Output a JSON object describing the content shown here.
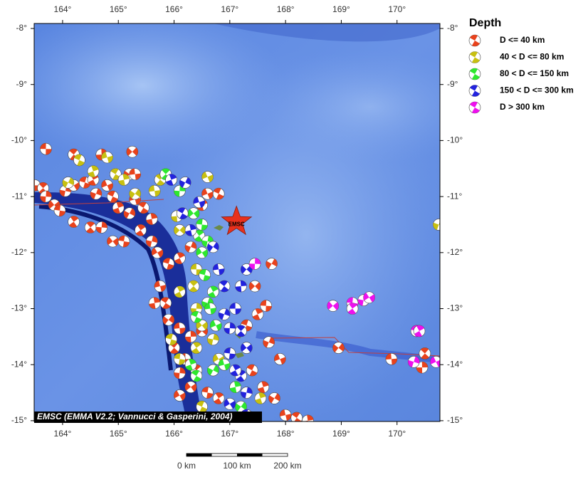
{
  "map": {
    "lon_ticks": [
      {
        "value": 164,
        "label": "164°"
      },
      {
        "value": 165,
        "label": "165°"
      },
      {
        "value": 166,
        "label": "166°"
      },
      {
        "value": 167,
        "label": "167°"
      },
      {
        "value": 168,
        "label": "168°"
      },
      {
        "value": 169,
        "label": "169°"
      },
      {
        "value": 170,
        "label": "170°"
      }
    ],
    "lat_ticks": [
      {
        "value": -8,
        "label": "-8°"
      },
      {
        "value": -9,
        "label": "-9°"
      },
      {
        "value": -10,
        "label": "-10°"
      },
      {
        "value": -11,
        "label": "-11°"
      },
      {
        "value": -12,
        "label": "-12°"
      },
      {
        "value": -13,
        "label": "-13°"
      },
      {
        "value": -14,
        "label": "-14°"
      },
      {
        "value": -15,
        "label": "-15°"
      }
    ],
    "credit": "EMSC (EMMA V2.2; Vannucci & Gasperini, 2004)",
    "epicenter": {
      "label": "EMSC",
      "lon": 167.12,
      "lat": -11.45
    },
    "scale_bar": [
      "0 km",
      "100 km",
      "200 km"
    ],
    "legend": {
      "title": "Depth",
      "items": [
        {
          "label": "D <= 40 km",
          "color": "#e8421c",
          "events": [
            [
              163.5,
              -10.8
            ],
            [
              163.65,
              -10.85
            ],
            [
              163.7,
              -11.0
            ],
            [
              163.85,
              -11.15
            ],
            [
              163.95,
              -11.25
            ],
            [
              164.2,
              -11.45
            ],
            [
              164.05,
              -10.9
            ],
            [
              164.2,
              -10.8
            ],
            [
              164.4,
              -10.75
            ],
            [
              164.55,
              -10.7
            ],
            [
              164.6,
              -10.95
            ],
            [
              164.8,
              -10.8
            ],
            [
              164.9,
              -11.0
            ],
            [
              165.0,
              -11.2
            ],
            [
              165.2,
              -11.3
            ],
            [
              165.3,
              -11.05
            ],
            [
              165.45,
              -11.2
            ],
            [
              165.6,
              -11.4
            ],
            [
              165.2,
              -10.6
            ],
            [
              165.3,
              -10.6
            ],
            [
              164.2,
              -10.25
            ],
            [
              164.7,
              -10.25
            ],
            [
              165.25,
              -10.2
            ],
            [
              163.7,
              -10.15
            ],
            [
              164.5,
              -11.55
            ],
            [
              164.7,
              -11.55
            ],
            [
              164.9,
              -11.8
            ],
            [
              165.1,
              -11.8
            ],
            [
              165.4,
              -11.6
            ],
            [
              165.6,
              -11.8
            ],
            [
              165.7,
              -12.0
            ],
            [
              165.9,
              -12.2
            ],
            [
              166.1,
              -12.1
            ],
            [
              166.3,
              -11.9
            ],
            [
              166.6,
              -10.95
            ],
            [
              166.8,
              -10.95
            ],
            [
              166.5,
              -11.15
            ],
            [
              167.75,
              -12.2
            ],
            [
              165.75,
              -12.6
            ],
            [
              165.85,
              -12.9
            ],
            [
              165.65,
              -12.9
            ],
            [
              165.9,
              -13.2
            ],
            [
              166.1,
              -13.35
            ],
            [
              166.0,
              -13.7
            ],
            [
              166.3,
              -13.5
            ],
            [
              166.5,
              -13.4
            ],
            [
              166.2,
              -13.9
            ],
            [
              166.4,
              -14.1
            ],
            [
              166.1,
              -14.15
            ],
            [
              166.3,
              -14.4
            ],
            [
              166.6,
              -14.5
            ],
            [
              166.8,
              -14.6
            ],
            [
              166.5,
              -14.9
            ],
            [
              166.1,
              -14.55
            ],
            [
              167.3,
              -13.3
            ],
            [
              167.5,
              -13.1
            ],
            [
              167.7,
              -13.6
            ],
            [
              167.9,
              -13.9
            ],
            [
              167.4,
              -14.1
            ],
            [
              167.6,
              -14.4
            ],
            [
              167.8,
              -14.6
            ],
            [
              168.0,
              -14.9
            ],
            [
              168.2,
              -14.95
            ],
            [
              168.4,
              -15.0
            ],
            [
              168.95,
              -13.7
            ],
            [
              169.9,
              -13.9
            ],
            [
              170.5,
              -13.8
            ],
            [
              170.45,
              -14.05
            ],
            [
              167.45,
              -12.6
            ],
            [
              167.65,
              -12.95
            ]
          ]
        },
        {
          "label": "40 < D <= 80 km",
          "color": "#c8c010",
          "events": [
            [
              164.3,
              -10.35
            ],
            [
              164.55,
              -10.55
            ],
            [
              164.1,
              -10.75
            ],
            [
              164.8,
              -10.3
            ],
            [
              164.95,
              -10.6
            ],
            [
              165.1,
              -10.7
            ],
            [
              165.3,
              -10.95
            ],
            [
              165.65,
              -10.9
            ],
            [
              165.75,
              -10.7
            ],
            [
              166.05,
              -11.35
            ],
            [
              166.1,
              -11.6
            ],
            [
              166.4,
              -12.3
            ],
            [
              166.35,
              -12.6
            ],
            [
              166.4,
              -13.0
            ],
            [
              166.5,
              -13.3
            ],
            [
              166.1,
              -13.9
            ],
            [
              166.4,
              -13.7
            ],
            [
              166.7,
              -13.55
            ],
            [
              166.8,
              -13.9
            ],
            [
              165.95,
              -13.55
            ],
            [
              166.1,
              -12.7
            ],
            [
              170.75,
              -11.5
            ],
            [
              166.6,
              -10.65
            ],
            [
              166.5,
              -14.75
            ],
            [
              167.55,
              -14.6
            ]
          ]
        },
        {
          "label": "80 < D <= 150 km",
          "color": "#2ee82e",
          "events": [
            [
              165.85,
              -10.6
            ],
            [
              166.1,
              -10.9
            ],
            [
              166.35,
              -11.3
            ],
            [
              166.5,
              -11.5
            ],
            [
              166.45,
              -11.7
            ],
            [
              166.6,
              -11.8
            ],
            [
              166.5,
              -12.0
            ],
            [
              166.55,
              -12.4
            ],
            [
              166.7,
              -12.7
            ],
            [
              166.6,
              -12.9
            ],
            [
              166.75,
              -13.3
            ],
            [
              166.4,
              -13.15
            ],
            [
              166.3,
              -14.0
            ],
            [
              166.7,
              -14.1
            ],
            [
              166.9,
              -14.0
            ],
            [
              166.4,
              -14.2
            ],
            [
              167.1,
              -14.4
            ],
            [
              167.2,
              -14.75
            ],
            [
              166.65,
              -13.0
            ]
          ]
        },
        {
          "label": "150 < D <= 300 km",
          "color": "#2222dd",
          "events": [
            [
              165.95,
              -10.7
            ],
            [
              166.2,
              -10.75
            ],
            [
              166.45,
              -11.1
            ],
            [
              166.15,
              -11.3
            ],
            [
              166.3,
              -11.6
            ],
            [
              166.7,
              -11.9
            ],
            [
              166.8,
              -12.3
            ],
            [
              166.9,
              -12.6
            ],
            [
              167.2,
              -12.6
            ],
            [
              167.3,
              -12.3
            ],
            [
              167.1,
              -13.0
            ],
            [
              167.2,
              -13.4
            ],
            [
              167.0,
              -13.35
            ],
            [
              167.3,
              -13.7
            ],
            [
              167.0,
              -13.8
            ],
            [
              167.2,
              -14.2
            ],
            [
              167.3,
              -14.5
            ],
            [
              167.0,
              -14.7
            ],
            [
              167.3,
              -14.9
            ],
            [
              167.1,
              -14.1
            ],
            [
              166.9,
              -13.1
            ]
          ]
        },
        {
          "label": "D > 300 km",
          "color": "#ee10ee",
          "events": [
            [
              167.45,
              -12.2
            ],
            [
              168.85,
              -12.95
            ],
            [
              169.2,
              -12.9
            ],
            [
              169.2,
              -13.0
            ],
            [
              169.4,
              -12.85
            ],
            [
              169.5,
              -12.8
            ],
            [
              170.35,
              -13.4
            ],
            [
              170.4,
              -13.4
            ],
            [
              170.3,
              -13.95
            ],
            [
              170.7,
              -13.95
            ]
          ]
        }
      ]
    }
  }
}
